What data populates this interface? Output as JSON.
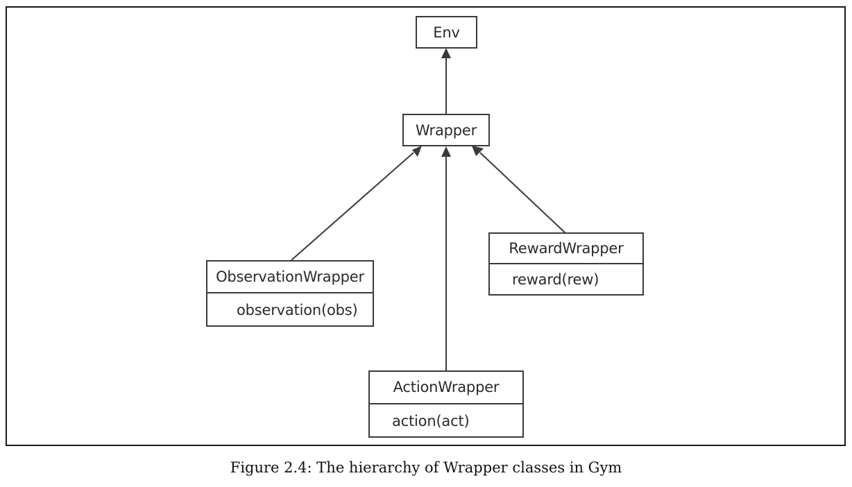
{
  "diagram": {
    "nodes": {
      "env": {
        "name": "Env"
      },
      "wrapper": {
        "name": "Wrapper"
      },
      "observation_wrapper": {
        "name": "ObservationWrapper",
        "method": "observation(obs)"
      },
      "reward_wrapper": {
        "name": "RewardWrapper",
        "method": "reward(rew)"
      },
      "action_wrapper": {
        "name": "ActionWrapper",
        "method": "action(act)"
      }
    },
    "edges": [
      {
        "from": "Wrapper",
        "to": "Env",
        "kind": "inheritance"
      },
      {
        "from": "ObservationWrapper",
        "to": "Wrapper",
        "kind": "inheritance"
      },
      {
        "from": "ActionWrapper",
        "to": "Wrapper",
        "kind": "inheritance"
      },
      {
        "from": "RewardWrapper",
        "to": "Wrapper",
        "kind": "inheritance"
      }
    ],
    "colors": {
      "line": "#3a3a3a",
      "border": "#1a1a1a"
    }
  },
  "caption": "Figure 2.4: The hierarchy of Wrapper classes in Gym"
}
